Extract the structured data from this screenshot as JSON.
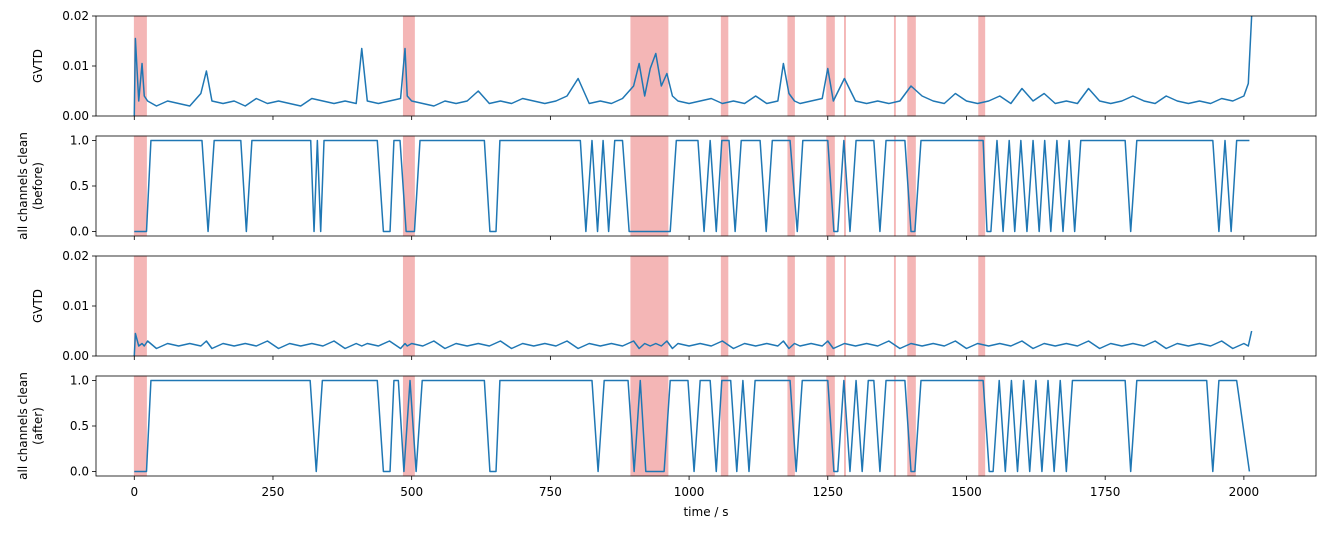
{
  "chart_data": [
    {
      "type": "line",
      "ylabel": [
        "GVTD"
      ],
      "color": "#1f77b4",
      "span_color": "#f4b6b6",
      "xtick_labels": false,
      "xlim": [
        -69,
        2130
      ],
      "xticks": [
        0,
        250,
        500,
        750,
        1000,
        1250,
        1500,
        1750,
        2000
      ],
      "ylim": [
        0,
        0.02
      ],
      "yticks": [
        {
          "value": 0,
          "label": "0.00"
        },
        {
          "value": 0.01,
          "label": "0.01"
        },
        {
          "value": 0.02,
          "label": "0.02"
        }
      ],
      "spans": [
        [
          0,
          22
        ],
        [
          485,
          505
        ],
        [
          895,
          962
        ],
        [
          1058,
          1070
        ],
        [
          1178,
          1190
        ],
        [
          1248,
          1262
        ],
        [
          1280,
          1282
        ],
        [
          1370,
          1372
        ],
        [
          1394,
          1408
        ],
        [
          1522,
          1533
        ]
      ],
      "x": [
        0,
        2,
        8,
        14,
        18,
        24,
        40,
        60,
        80,
        100,
        120,
        130,
        140,
        160,
        180,
        200,
        220,
        240,
        260,
        280,
        300,
        320,
        340,
        360,
        380,
        400,
        410,
        420,
        440,
        460,
        480,
        488,
        492,
        500,
        520,
        540,
        560,
        580,
        600,
        620,
        640,
        660,
        680,
        700,
        720,
        740,
        760,
        780,
        800,
        820,
        840,
        860,
        880,
        900,
        910,
        920,
        930,
        940,
        950,
        960,
        970,
        980,
        1000,
        1020,
        1040,
        1060,
        1080,
        1100,
        1120,
        1140,
        1160,
        1170,
        1180,
        1190,
        1200,
        1220,
        1240,
        1250,
        1260,
        1280,
        1300,
        1320,
        1340,
        1360,
        1380,
        1400,
        1420,
        1440,
        1460,
        1480,
        1500,
        1520,
        1540,
        1560,
        1580,
        1600,
        1620,
        1640,
        1660,
        1680,
        1700,
        1720,
        1740,
        1760,
        1780,
        1800,
        1820,
        1840,
        1860,
        1880,
        1900,
        1920,
        1940,
        1960,
        1980,
        2000,
        2008,
        2014
      ],
      "values": [
        0,
        0.0155,
        0.003,
        0.0105,
        0.004,
        0.003,
        0.002,
        0.003,
        0.0025,
        0.002,
        0.0045,
        0.009,
        0.003,
        0.0025,
        0.003,
        0.002,
        0.0035,
        0.0025,
        0.003,
        0.0025,
        0.002,
        0.0035,
        0.003,
        0.0025,
        0.003,
        0.0025,
        0.0135,
        0.003,
        0.0025,
        0.003,
        0.0035,
        0.0135,
        0.004,
        0.003,
        0.0025,
        0.002,
        0.003,
        0.0025,
        0.003,
        0.005,
        0.0025,
        0.003,
        0.0025,
        0.0035,
        0.003,
        0.0025,
        0.003,
        0.004,
        0.0075,
        0.0025,
        0.003,
        0.0025,
        0.0035,
        0.006,
        0.0105,
        0.004,
        0.0095,
        0.0125,
        0.006,
        0.0085,
        0.004,
        0.003,
        0.0025,
        0.003,
        0.0035,
        0.0025,
        0.003,
        0.0025,
        0.004,
        0.0025,
        0.003,
        0.0105,
        0.0045,
        0.003,
        0.0025,
        0.003,
        0.0035,
        0.0095,
        0.003,
        0.0075,
        0.003,
        0.0025,
        0.003,
        0.0025,
        0.003,
        0.006,
        0.004,
        0.003,
        0.0025,
        0.0045,
        0.003,
        0.0025,
        0.003,
        0.004,
        0.0025,
        0.0055,
        0.003,
        0.0045,
        0.0025,
        0.003,
        0.0025,
        0.0055,
        0.003,
        0.0025,
        0.003,
        0.004,
        0.003,
        0.0025,
        0.004,
        0.003,
        0.0025,
        0.003,
        0.0025,
        0.0035,
        0.003,
        0.004,
        0.0065,
        0.02
      ]
    },
    {
      "type": "line",
      "ylabel": [
        "all channels clean",
        "(before)"
      ],
      "color": "#1f77b4",
      "span_color": "#f4b6b6",
      "xtick_labels": false,
      "xlim": [
        -69,
        2130
      ],
      "xticks": [
        0,
        250,
        500,
        750,
        1000,
        1250,
        1500,
        1750,
        2000
      ],
      "ylim": [
        -0.05,
        1.05
      ],
      "yticks": [
        {
          "value": 0,
          "label": "0.0"
        },
        {
          "value": 0.5,
          "label": "0.5"
        },
        {
          "value": 1,
          "label": "1.0"
        }
      ],
      "spans": [
        [
          0,
          22
        ],
        [
          485,
          505
        ],
        [
          895,
          962
        ],
        [
          1058,
          1070
        ],
        [
          1178,
          1190
        ],
        [
          1248,
          1262
        ],
        [
          1280,
          1282
        ],
        [
          1370,
          1372
        ],
        [
          1394,
          1408
        ],
        [
          1522,
          1533
        ]
      ],
      "x": [
        0,
        22,
        30,
        122,
        133,
        144,
        192,
        202,
        212,
        318,
        324,
        330,
        336,
        342,
        438,
        449,
        461,
        468,
        479,
        490,
        505,
        515,
        631,
        641,
        652,
        659,
        804,
        814,
        825,
        835,
        845,
        855,
        866,
        880,
        892,
        966,
        977,
        1016,
        1027,
        1038,
        1049,
        1059,
        1072,
        1083,
        1094,
        1128,
        1139,
        1150,
        1182,
        1195,
        1205,
        1250,
        1261,
        1268,
        1279,
        1290,
        1301,
        1333,
        1344,
        1355,
        1389,
        1400,
        1407,
        1418,
        1530,
        1537,
        1544,
        1555,
        1566,
        1577,
        1587,
        1598,
        1609,
        1620,
        1631,
        1641,
        1652,
        1663,
        1674,
        1685,
        1695,
        1706,
        1786,
        1796,
        1807,
        1944,
        1955,
        1966,
        1977,
        1987,
        2010
      ],
      "values": [
        0,
        0,
        1,
        1,
        0,
        1,
        1,
        0,
        1,
        1,
        0,
        1,
        0,
        1,
        1,
        0,
        0,
        1,
        1,
        0,
        0,
        1,
        1,
        0,
        0,
        1,
        1,
        0,
        1,
        0,
        1,
        0,
        1,
        1,
        0,
        0,
        1,
        1,
        0,
        1,
        0,
        1,
        1,
        0,
        1,
        1,
        0,
        1,
        1,
        0,
        1,
        1,
        0,
        0,
        1,
        0,
        1,
        1,
        0,
        1,
        1,
        0,
        0,
        1,
        1,
        0,
        0,
        1,
        0,
        1,
        0,
        1,
        0,
        1,
        0,
        1,
        0,
        1,
        0,
        1,
        0,
        1,
        1,
        0,
        1,
        1,
        0,
        1,
        0,
        1,
        1
      ]
    },
    {
      "type": "line",
      "ylabel": [
        "GVTD"
      ],
      "color": "#1f77b4",
      "span_color": "#f4b6b6",
      "xtick_labels": false,
      "xlim": [
        -69,
        2130
      ],
      "xticks": [
        0,
        250,
        500,
        750,
        1000,
        1250,
        1500,
        1750,
        2000
      ],
      "ylim": [
        0,
        0.02
      ],
      "yticks": [
        {
          "value": 0,
          "label": "0.00"
        },
        {
          "value": 0.01,
          "label": "0.01"
        },
        {
          "value": 0.02,
          "label": "0.02"
        }
      ],
      "spans": [
        [
          0,
          22
        ],
        [
          485,
          505
        ],
        [
          895,
          962
        ],
        [
          1058,
          1070
        ],
        [
          1178,
          1190
        ],
        [
          1248,
          1262
        ],
        [
          1280,
          1282
        ],
        [
          1370,
          1372
        ],
        [
          1394,
          1408
        ],
        [
          1522,
          1533
        ]
      ],
      "x": [
        0,
        2,
        8,
        14,
        18,
        24,
        40,
        60,
        80,
        100,
        120,
        130,
        140,
        160,
        180,
        200,
        220,
        240,
        260,
        280,
        300,
        320,
        340,
        360,
        380,
        400,
        410,
        420,
        440,
        460,
        480,
        488,
        492,
        500,
        520,
        540,
        560,
        580,
        600,
        620,
        640,
        660,
        680,
        700,
        720,
        740,
        760,
        780,
        800,
        820,
        840,
        860,
        880,
        900,
        910,
        920,
        930,
        940,
        950,
        960,
        970,
        980,
        1000,
        1020,
        1040,
        1060,
        1080,
        1100,
        1120,
        1140,
        1160,
        1170,
        1180,
        1190,
        1200,
        1220,
        1240,
        1250,
        1260,
        1280,
        1300,
        1320,
        1340,
        1360,
        1380,
        1400,
        1420,
        1440,
        1460,
        1480,
        1500,
        1520,
        1540,
        1560,
        1580,
        1600,
        1620,
        1640,
        1660,
        1680,
        1700,
        1720,
        1740,
        1760,
        1780,
        1800,
        1820,
        1840,
        1860,
        1880,
        1900,
        1920,
        1940,
        1960,
        1980,
        2000,
        2008,
        2014
      ],
      "values": [
        0,
        0.0045,
        0.002,
        0.0025,
        0.002,
        0.003,
        0.0015,
        0.0025,
        0.002,
        0.0025,
        0.002,
        0.003,
        0.0015,
        0.0025,
        0.002,
        0.0025,
        0.002,
        0.003,
        0.0015,
        0.0025,
        0.002,
        0.0025,
        0.002,
        0.003,
        0.0015,
        0.0025,
        0.002,
        0.0025,
        0.002,
        0.003,
        0.0015,
        0.0025,
        0.002,
        0.0025,
        0.002,
        0.003,
        0.0015,
        0.0025,
        0.002,
        0.0025,
        0.002,
        0.003,
        0.0015,
        0.0025,
        0.002,
        0.0025,
        0.002,
        0.003,
        0.0015,
        0.0025,
        0.002,
        0.0025,
        0.002,
        0.003,
        0.0015,
        0.0025,
        0.002,
        0.0025,
        0.002,
        0.003,
        0.0015,
        0.0025,
        0.002,
        0.0025,
        0.002,
        0.003,
        0.0015,
        0.0025,
        0.002,
        0.0025,
        0.002,
        0.003,
        0.0015,
        0.0025,
        0.002,
        0.0025,
        0.002,
        0.003,
        0.0015,
        0.0025,
        0.002,
        0.0025,
        0.002,
        0.003,
        0.0015,
        0.0025,
        0.002,
        0.0025,
        0.002,
        0.003,
        0.0015,
        0.0025,
        0.002,
        0.0025,
        0.002,
        0.003,
        0.0015,
        0.0025,
        0.002,
        0.0025,
        0.002,
        0.003,
        0.0015,
        0.0025,
        0.002,
        0.0025,
        0.002,
        0.003,
        0.0015,
        0.0025,
        0.002,
        0.0025,
        0.002,
        0.003,
        0.0015,
        0.0025,
        0.002,
        0.005
      ]
    },
    {
      "type": "line",
      "ylabel": [
        "all channels clean",
        "(after)"
      ],
      "xlabel": "time / s",
      "color": "#1f77b4",
      "span_color": "#f4b6b6",
      "xtick_labels": true,
      "xlim": [
        -69,
        2130
      ],
      "xticks": [
        0,
        250,
        500,
        750,
        1000,
        1250,
        1500,
        1750,
        2000
      ],
      "ylim": [
        -0.05,
        1.05
      ],
      "yticks": [
        {
          "value": 0,
          "label": "0.0"
        },
        {
          "value": 0.5,
          "label": "0.5"
        },
        {
          "value": 1,
          "label": "1.0"
        }
      ],
      "spans": [
        [
          0,
          22
        ],
        [
          485,
          505
        ],
        [
          895,
          962
        ],
        [
          1058,
          1070
        ],
        [
          1178,
          1190
        ],
        [
          1248,
          1262
        ],
        [
          1280,
          1282
        ],
        [
          1370,
          1372
        ],
        [
          1394,
          1408
        ],
        [
          1522,
          1533
        ]
      ],
      "x": [
        0,
        22,
        30,
        317,
        328,
        339,
        438,
        449,
        461,
        468,
        476,
        486,
        497,
        508,
        519,
        631,
        641,
        652,
        659,
        825,
        836,
        847,
        890,
        901,
        912,
        922,
        955,
        966,
        998,
        1009,
        1020,
        1038,
        1049,
        1059,
        1075,
        1086,
        1097,
        1108,
        1119,
        1182,
        1193,
        1204,
        1250,
        1261,
        1268,
        1279,
        1290,
        1301,
        1312,
        1323,
        1333,
        1344,
        1355,
        1389,
        1400,
        1407,
        1418,
        1530,
        1541,
        1548,
        1559,
        1570,
        1581,
        1592,
        1603,
        1614,
        1625,
        1636,
        1647,
        1658,
        1669,
        1680,
        1691,
        1786,
        1796,
        1807,
        1933,
        1944,
        1955,
        1987,
        2010
      ],
      "values": [
        0,
        0,
        1,
        1,
        0,
        1,
        1,
        0,
        0,
        1,
        1,
        0,
        1,
        0,
        1,
        1,
        0,
        0,
        1,
        1,
        0,
        1,
        1,
        0,
        1,
        0,
        0,
        1,
        1,
        0,
        1,
        1,
        0,
        1,
        1,
        0,
        1,
        0,
        1,
        1,
        0,
        1,
        1,
        0,
        0,
        1,
        0,
        1,
        0,
        1,
        1,
        0,
        1,
        1,
        0,
        0,
        1,
        1,
        0,
        0,
        1,
        0,
        1,
        0,
        1,
        0,
        1,
        0,
        1,
        0,
        1,
        0,
        1,
        1,
        0,
        1,
        1,
        0,
        1,
        1,
        0
      ]
    }
  ]
}
